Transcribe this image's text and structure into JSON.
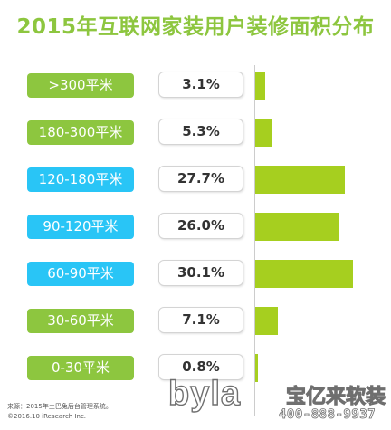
{
  "chart_data": {
    "type": "bar",
    "title": "2015年互联网家装用户装修面积分布",
    "categories": [
      ">300平米",
      "180-300平米",
      "120-180平米",
      "90-120平米",
      "60-90平米",
      "30-60平米",
      "0-30平米"
    ],
    "values": [
      3.1,
      5.3,
      27.7,
      26.0,
      30.1,
      7.1,
      0.8
    ],
    "value_labels": [
      "3.1%",
      "5.3%",
      "27.7%",
      "26.0%",
      "30.1%",
      "7.1%",
      "0.8%"
    ],
    "unit": "%",
    "orientation": "horizontal",
    "grid": false,
    "legend": "none",
    "category_colors": [
      "#8dc63f",
      "#8dc63f",
      "#29c5f6",
      "#29c5f6",
      "#29c5f6",
      "#8dc63f",
      "#8dc63f"
    ],
    "bar_color": "#a6cf1f"
  },
  "footer": {
    "source": "来源：2015年土巴兔后台管理系统。",
    "copyright": "©2016.10 iResearch Inc."
  },
  "watermark": {
    "logo": "byla",
    "brand": "宝亿来软装",
    "phone": "400-888-9937"
  }
}
